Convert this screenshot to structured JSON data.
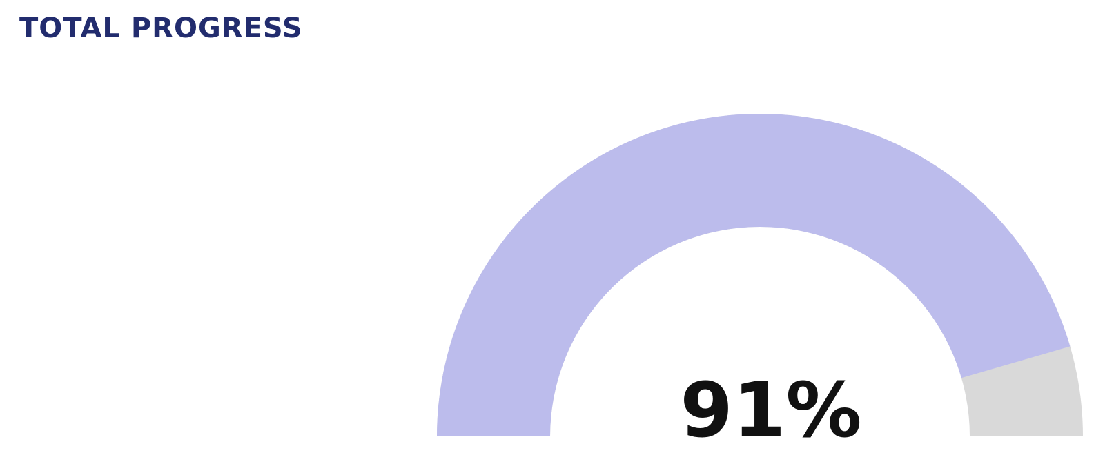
{
  "panel": {
    "title": "TOTAL PROGRESS"
  },
  "chart_data": {
    "type": "gauge",
    "value": 91,
    "min": 0,
    "max": 100,
    "value_label": "91%",
    "fill_color": "#bcbcec",
    "track_color": "#d9d9d9",
    "value_text_color": "#111111"
  }
}
